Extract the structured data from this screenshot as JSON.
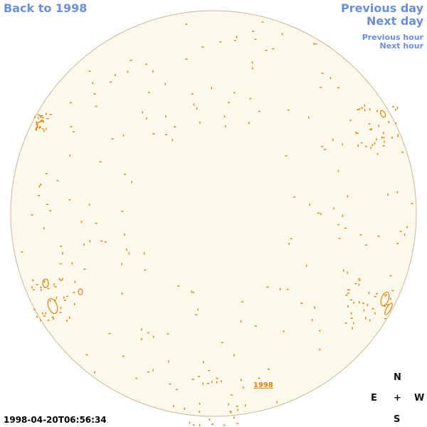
{
  "nav": {
    "back_label": "Back to 1998",
    "previous_day_label": "Previous day",
    "next_day_label": "Next day",
    "previous_hour_label": "Previous hour",
    "next_hour_label": "Next hour"
  },
  "compass": {
    "north": "N",
    "east": "E",
    "center": "+",
    "west": "W",
    "south": "S"
  },
  "timestamp": "1998-04-20T06:56:34",
  "disk_mark_label": "1998",
  "colors": {
    "disk_fill": "#fdf8ec",
    "disk_edge": "#c9b896",
    "contour": "#e0860b",
    "link": "#6a8fd8",
    "background": "#ffffff"
  }
}
